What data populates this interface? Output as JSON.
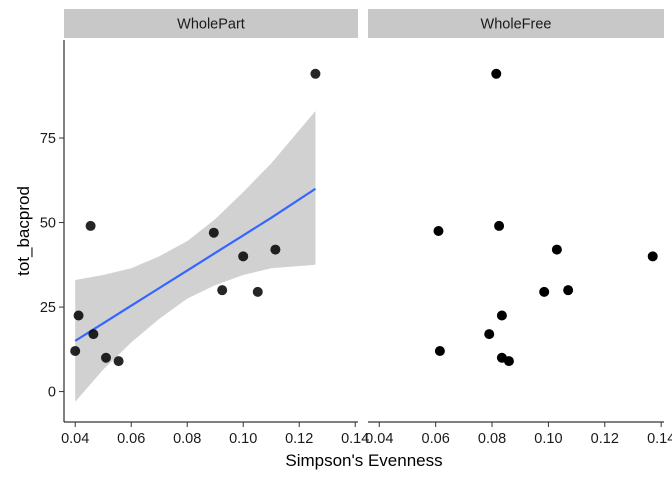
{
  "chart_data": {
    "type": "scatter",
    "xlabel": "Simpson's Evenness",
    "ylabel": "tot_bacprod",
    "xlim": [
      0.036,
      0.141
    ],
    "ylim": [
      -9,
      104
    ],
    "x_ticks": [
      0.04,
      0.06,
      0.08,
      0.1,
      0.12,
      0.14
    ],
    "x_tick_labels": [
      "0.04",
      "0.06",
      "0.08",
      "0.10",
      "0.12",
      "0.14"
    ],
    "y_ticks": [
      0,
      25,
      50,
      75
    ],
    "y_tick_labels": [
      "0",
      "25",
      "50",
      "75"
    ],
    "grid": false,
    "point_color": "#000000",
    "line_color": "#3366ff",
    "ribbon_color": "#bdbdbd",
    "strip_color": "#c8c8c8",
    "facets": [
      {
        "label": "WholePart",
        "points": [
          {
            "x": 0.04,
            "y": 12
          },
          {
            "x": 0.0412,
            "y": 22.5
          },
          {
            "x": 0.0455,
            "y": 49
          },
          {
            "x": 0.0465,
            "y": 17
          },
          {
            "x": 0.051,
            "y": 10
          },
          {
            "x": 0.0555,
            "y": 9
          },
          {
            "x": 0.0895,
            "y": 47
          },
          {
            "x": 0.0925,
            "y": 30
          },
          {
            "x": 0.1,
            "y": 40
          },
          {
            "x": 0.1052,
            "y": 29.5
          },
          {
            "x": 0.1115,
            "y": 42
          },
          {
            "x": 0.1258,
            "y": 94
          }
        ],
        "fit": {
          "x": [
            0.04,
            0.05,
            0.06,
            0.07,
            0.08,
            0.09,
            0.1,
            0.11,
            0.1258
          ],
          "y": [
            15,
            20.2,
            25.4,
            30.6,
            35.8,
            41.0,
            46.2,
            51.4,
            60
          ],
          "lower": [
            -3,
            6.5,
            14.5,
            21.5,
            27.5,
            31.5,
            34.5,
            36.5,
            37.5
          ],
          "upper": [
            33,
            34.5,
            36.5,
            40,
            44.5,
            51,
            59,
            67.5,
            83
          ]
        }
      },
      {
        "label": "WholeFree",
        "points": [
          {
            "x": 0.061,
            "y": 47.5
          },
          {
            "x": 0.0615,
            "y": 12
          },
          {
            "x": 0.079,
            "y": 17
          },
          {
            "x": 0.0815,
            "y": 94
          },
          {
            "x": 0.0825,
            "y": 49
          },
          {
            "x": 0.0835,
            "y": 22.5
          },
          {
            "x": 0.0835,
            "y": 10
          },
          {
            "x": 0.086,
            "y": 9
          },
          {
            "x": 0.0985,
            "y": 29.5
          },
          {
            "x": 0.103,
            "y": 42
          },
          {
            "x": 0.107,
            "y": 30
          },
          {
            "x": 0.137,
            "y": 40
          }
        ]
      }
    ]
  }
}
